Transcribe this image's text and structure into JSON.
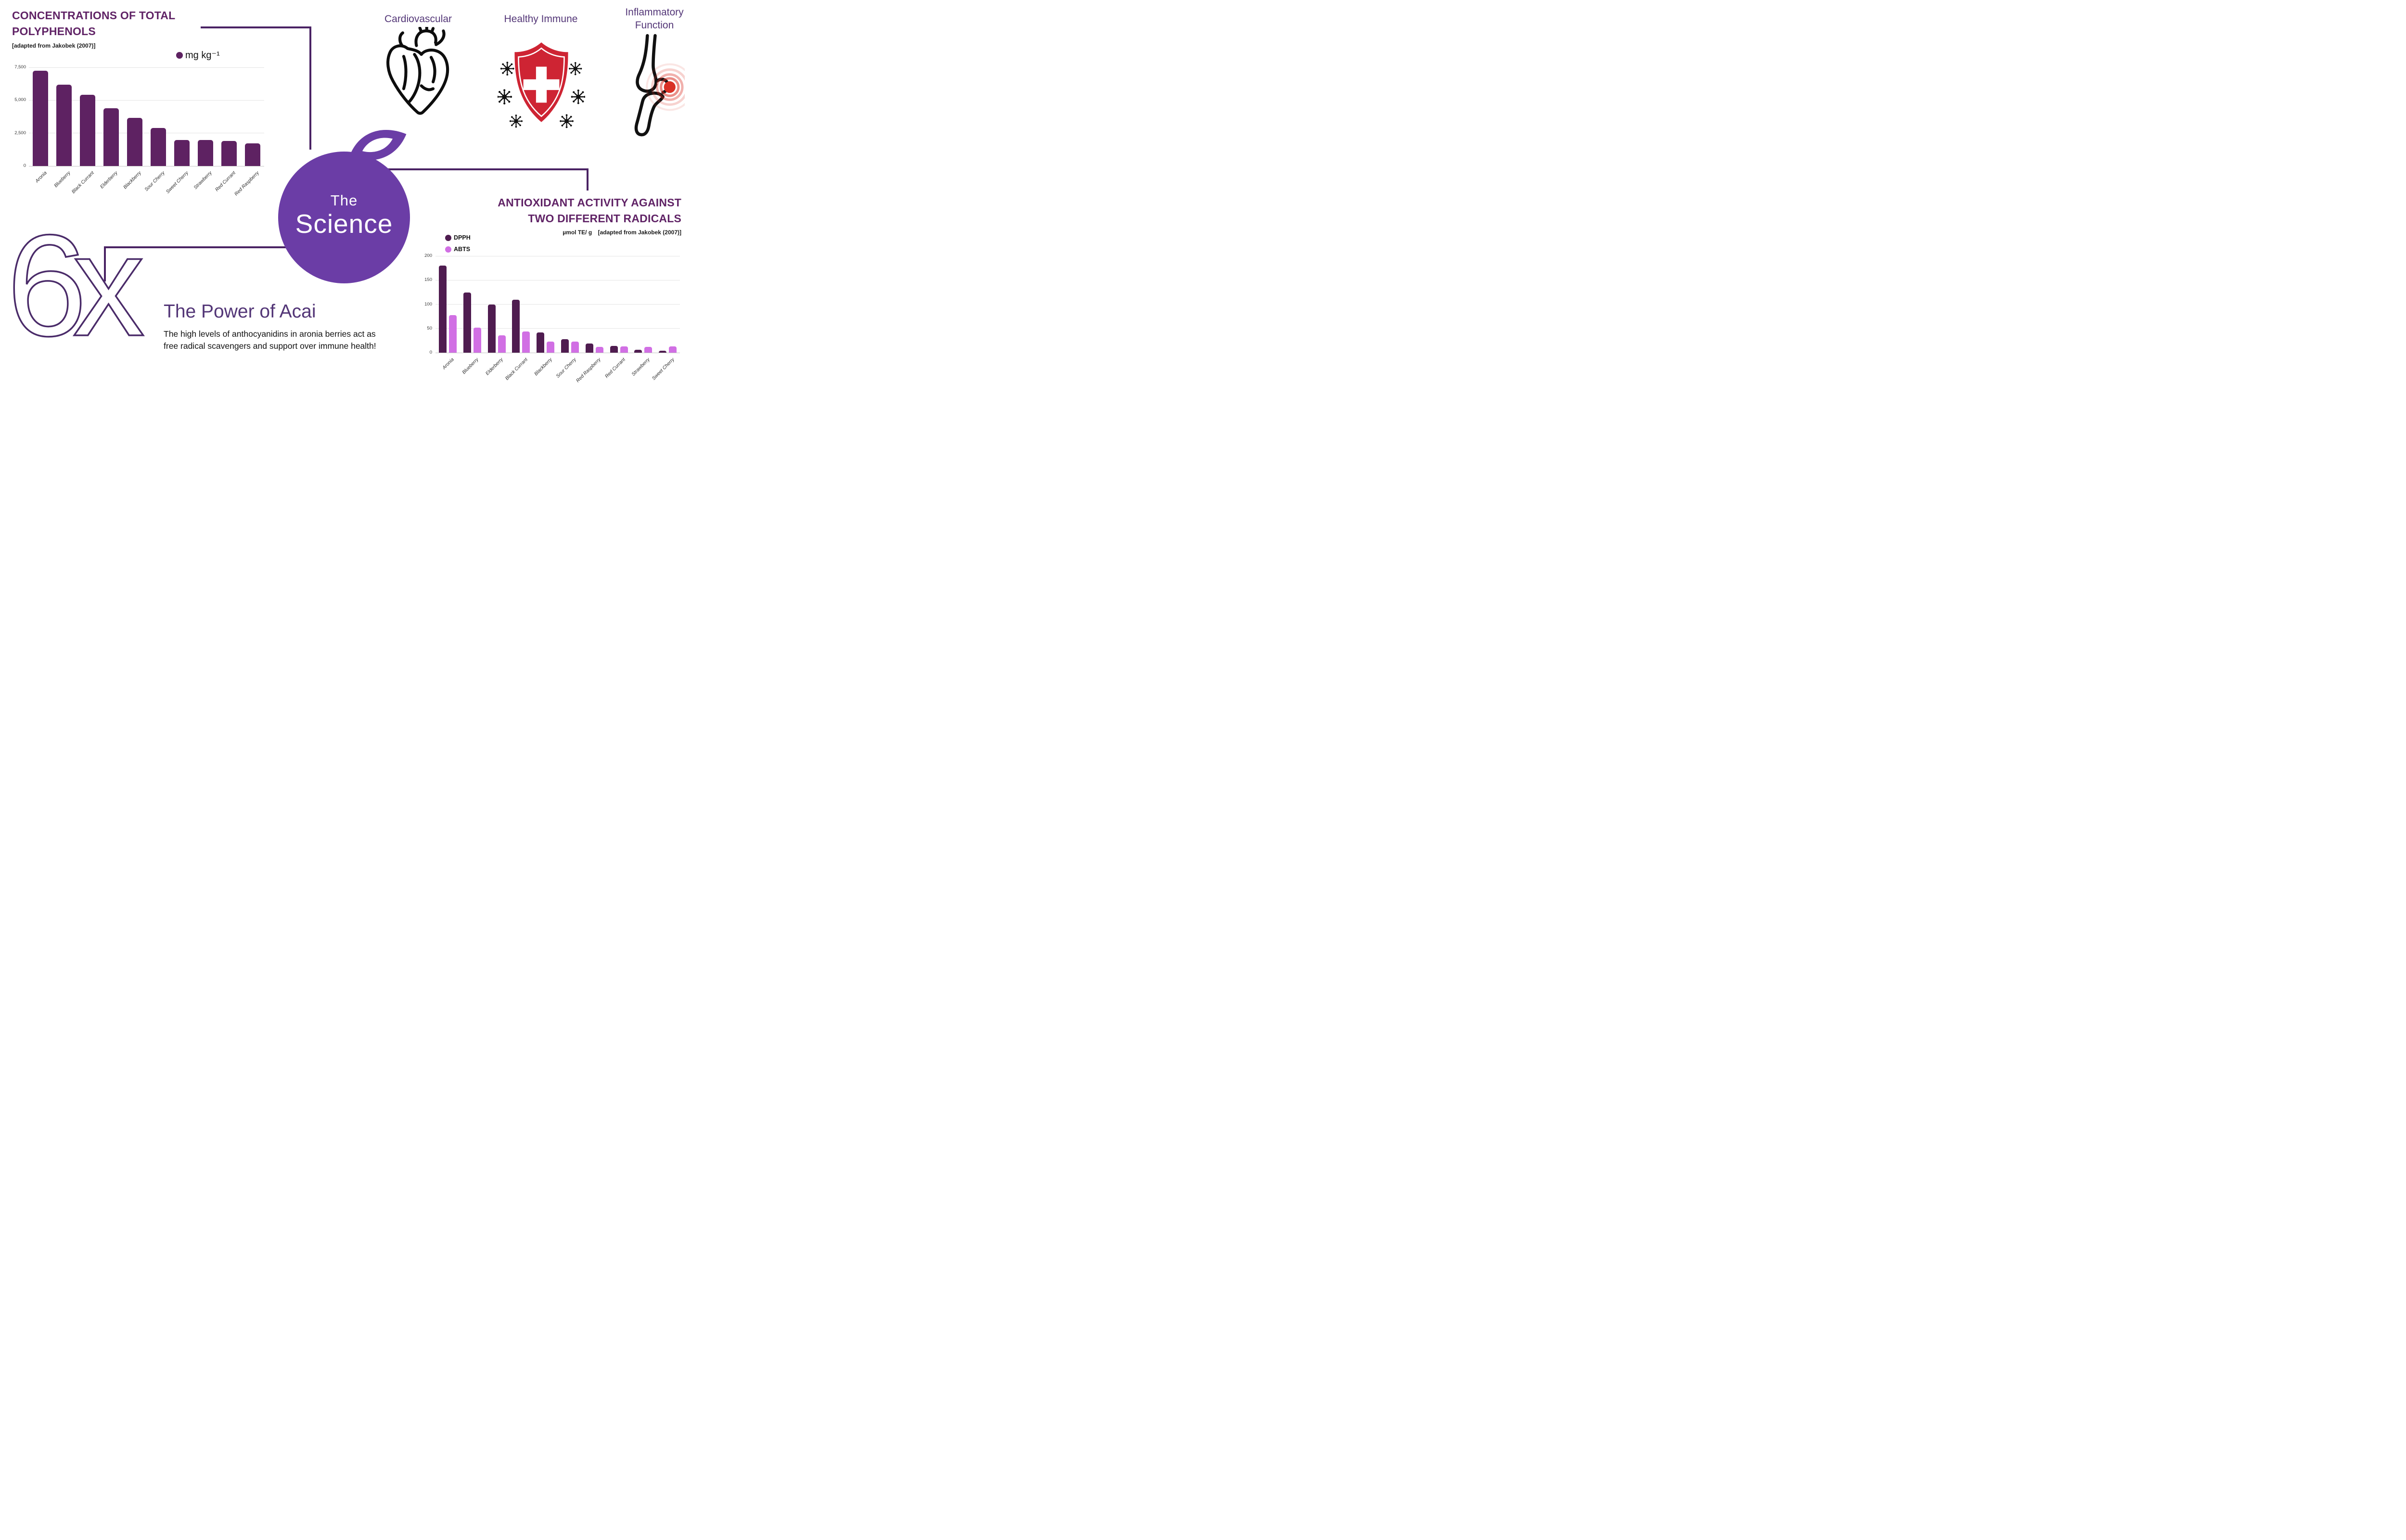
{
  "colors": {
    "plum_bar": "#5E2262",
    "title_plum": "#602366",
    "dpph": "#4F1C50",
    "abts": "#D16FE4",
    "berry_purple": "#6B3DA6",
    "heading_purple": "#533677",
    "connector_purple": "#4A2364",
    "shield_red": "#CE2433",
    "inflammation_red": "#D93025"
  },
  "center": {
    "line1": "The",
    "line2": "Science"
  },
  "benefits": [
    {
      "lines": [
        "Cardiovascular"
      ]
    },
    {
      "lines": [
        "Healthy Immune"
      ]
    },
    {
      "lines": [
        "Inflammatory",
        "Function"
      ]
    }
  ],
  "power": {
    "multiplier": "6x",
    "heading": "The Power of Acai",
    "body_line1": "The high levels of anthocyanidins in aronia berries act as",
    "body_line2": "free radical scavengers and support over immune health!"
  },
  "chart_data": [
    {
      "type": "bar",
      "title_line1": "CONCENTRATIONS OF TOTAL",
      "title_line2": "POLYPHENOLS",
      "subtitle": "[adapted from Jakobek (2007)]",
      "legend": [
        {
          "name": "mg kg⁻¹",
          "color": "#5E2262"
        }
      ],
      "legend_position": "top",
      "grid": true,
      "categories": [
        "Aronia",
        "Blueberry",
        "Black Currant",
        "Elderberry",
        "Blackberry",
        "Sour Cherry",
        "Sweet Cherry",
        "Strawberry",
        "Red Currant",
        "Red Raspberry"
      ],
      "values": [
        7250,
        6200,
        5400,
        4400,
        3650,
        2900,
        1960,
        1960,
        1920,
        1725
      ],
      "color": "#5E2262",
      "xlabel": "",
      "ylabel": "mg kg⁻¹",
      "ylim": [
        0,
        7500
      ],
      "yticks": [
        "0",
        "2,500",
        "5,000",
        "7,500"
      ]
    },
    {
      "type": "grouped-bar",
      "title_line1": "ANTIOXIDANT ACTIVITY AGAINST",
      "title_line2": "TWO DIFFERENT RADICALS",
      "subtitle_unit": "µmol TE/ g",
      "subtitle_source": "[adapted from Jakobek (2007)]",
      "legend_position": "top-left",
      "grid": true,
      "categories": [
        "Aronia",
        "Blueberry",
        "Elderberry",
        "Black Currant",
        "Blackberry",
        "Sour Cherry",
        "Red Raspberry",
        "Red Currant",
        "Strawberry",
        "Sweet Cherry"
      ],
      "series": [
        {
          "name": "DPPH",
          "color": "#4F1C50",
          "values": [
            180,
            124,
            100,
            109,
            42,
            28,
            19,
            14,
            6,
            4
          ]
        },
        {
          "name": "ABTS",
          "color": "#D16FE4",
          "values": [
            78,
            52,
            36,
            44,
            23,
            23,
            12,
            13,
            12,
            13
          ]
        }
      ],
      "xlabel": "",
      "ylabel": "µmol TE/ g",
      "ylim": [
        0,
        200
      ],
      "yticks": [
        "0",
        "50",
        "100",
        "150",
        "200"
      ]
    }
  ]
}
